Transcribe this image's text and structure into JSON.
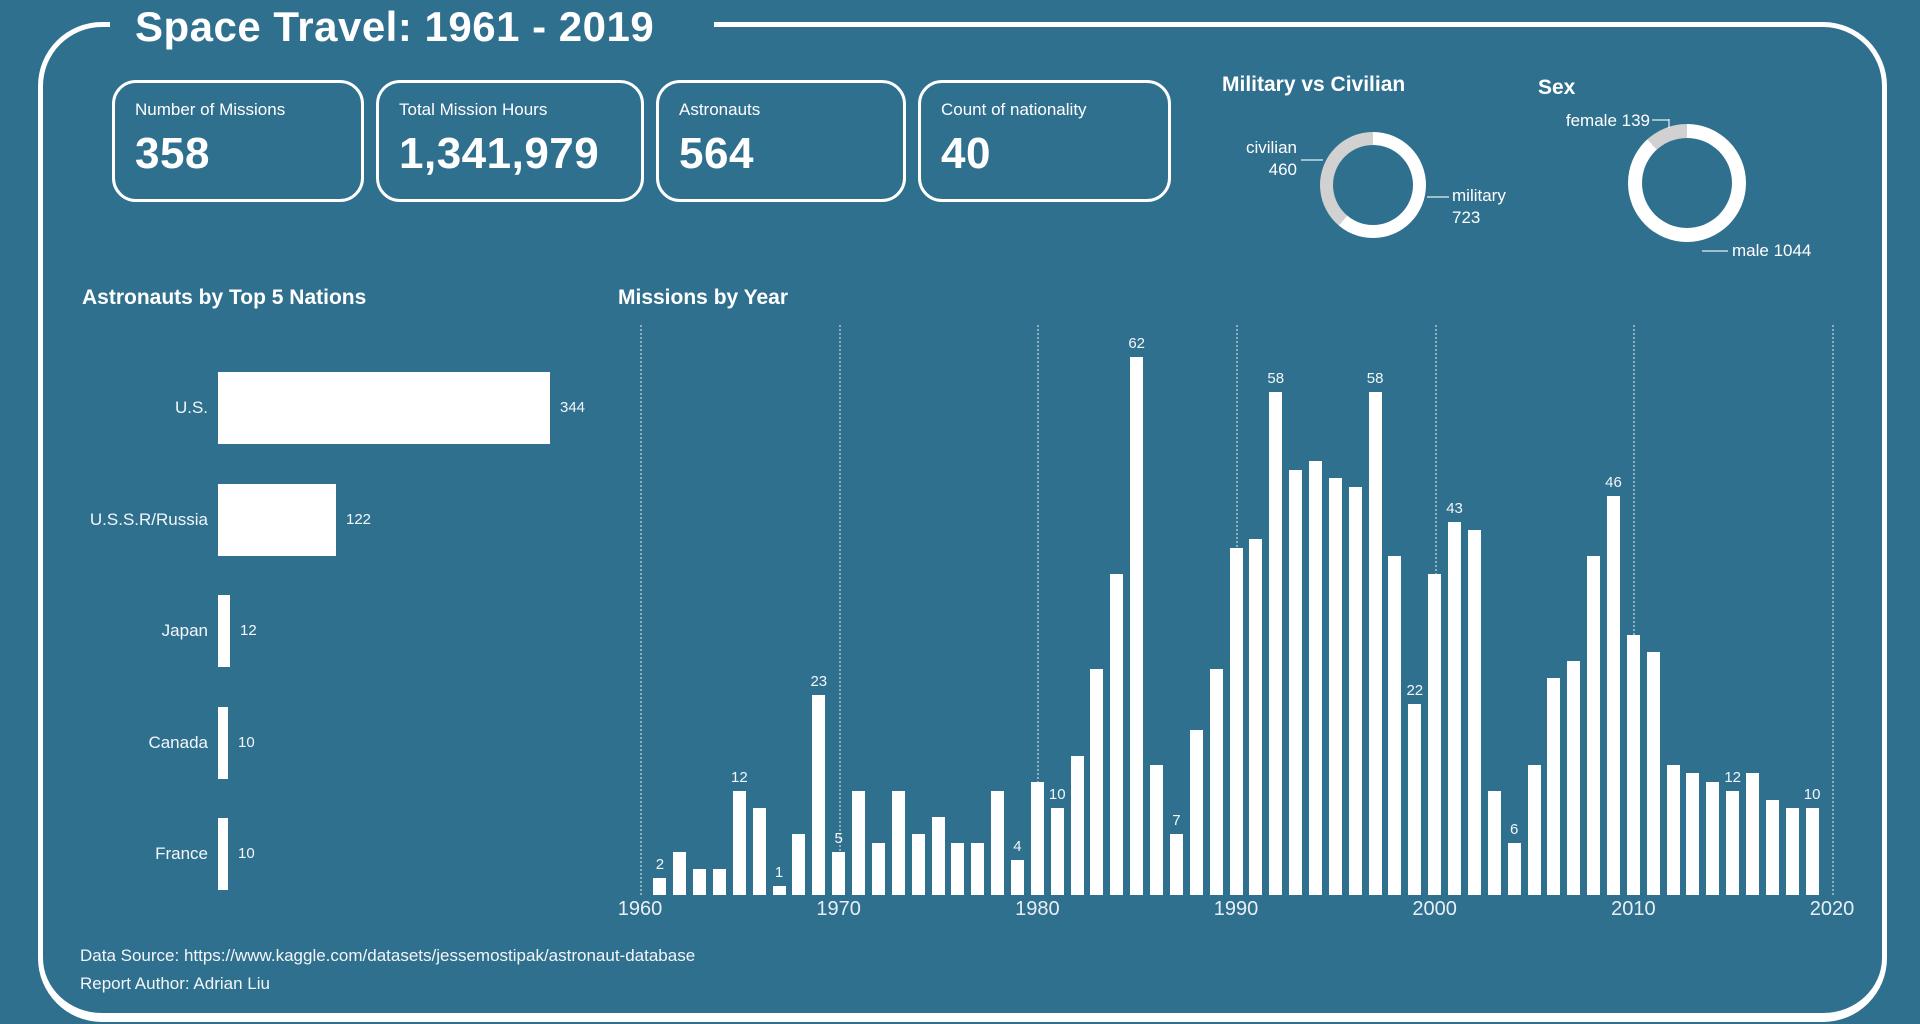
{
  "title": "Space Travel: 1961 - 2019",
  "colors": {
    "background": "#30708F",
    "primary": "#FFFFFF",
    "secondary_gray": "#D1D1D1"
  },
  "kpis": [
    {
      "label": "Number of Missions",
      "value": "358"
    },
    {
      "label": "Total Mission Hours",
      "value": "1,341,979"
    },
    {
      "label": "Astronauts",
      "value": "564"
    },
    {
      "label": "Count of nationality",
      "value": "40"
    }
  ],
  "chart_data": [
    {
      "id": "military_vs_civilian",
      "type": "pie",
      "donut": true,
      "title": "Military vs Civilian",
      "slices": [
        {
          "label": "military",
          "value": 723,
          "color": "#FFFFFF",
          "callout_lines": [
            "military",
            "723"
          ]
        },
        {
          "label": "civilian",
          "value": 460,
          "color": "#D1D1D1",
          "callout_lines": [
            "civilian",
            "460"
          ]
        }
      ]
    },
    {
      "id": "sex",
      "type": "pie",
      "donut": true,
      "title": "Sex",
      "slices": [
        {
          "label": "male",
          "value": 1044,
          "color": "#FFFFFF",
          "callout_lines": [
            "male 1044"
          ]
        },
        {
          "label": "female",
          "value": 139,
          "color": "#D1D1D1",
          "callout_lines": [
            "female 139"
          ]
        }
      ]
    },
    {
      "id": "astronauts_by_nation",
      "type": "bar",
      "orientation": "horizontal",
      "title": "Astronauts by Top 5 Nations",
      "categories": [
        "U.S.",
        "U.S.S.R/Russia",
        "Japan",
        "Canada",
        "France"
      ],
      "values": [
        344,
        122,
        12,
        10,
        10
      ],
      "xlim": [
        0,
        360
      ],
      "grid": false
    },
    {
      "id": "missions_by_year",
      "type": "bar",
      "orientation": "vertical",
      "title": "Missions by Year",
      "x_ticks": [
        1960,
        1970,
        1980,
        1990,
        2000,
        2010,
        2020
      ],
      "x_start_year": 1961,
      "values": [
        2,
        5,
        3,
        3,
        12,
        10,
        1,
        7,
        23,
        5,
        12,
        6,
        12,
        7,
        9,
        6,
        6,
        12,
        4,
        13,
        10,
        16,
        26,
        37,
        62,
        15,
        7,
        19,
        26,
        40,
        41,
        58,
        49,
        50,
        48,
        47,
        58,
        39,
        22,
        37,
        43,
        42,
        12,
        6,
        15,
        25,
        27,
        39,
        46,
        30,
        28,
        15,
        14,
        13,
        12,
        14,
        11,
        10,
        10
      ],
      "labeled_years": [
        1961,
        1965,
        1967,
        1969,
        1970,
        1979,
        1981,
        1985,
        1987,
        1992,
        1997,
        1999,
        2001,
        2004,
        2009,
        2015,
        2019
      ],
      "ylim": [
        0,
        65
      ],
      "grid": "vertical-dotted"
    }
  ],
  "footer": {
    "line1": "Data Source: https://www.kaggle.com/datasets/jessemostipak/astronaut-database",
    "line2": "Report Author: Adrian Liu"
  }
}
